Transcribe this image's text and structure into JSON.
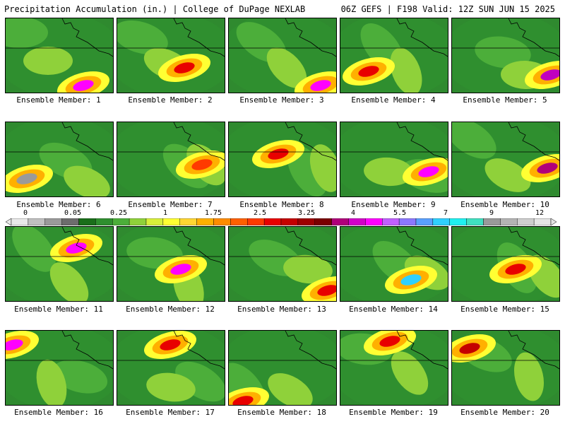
{
  "header": {
    "left_title": "Precipitation Accumulation (in.) | College of DuPage NEXLAB",
    "right_title": "06Z GEFS | F198 Valid: 12Z SUN JUN 15 2025"
  },
  "colorbar": {
    "labels": [
      "0",
      "0.05",
      "0.25",
      "1",
      "1.75",
      "2.5",
      "3.25",
      "4",
      "5.5",
      "7",
      "9",
      "12"
    ],
    "colors": [
      "#e8e8e8",
      "#c0c0c0",
      "#9a9a9a",
      "#6d6d6d",
      "#1a6e1a",
      "#2f8f2f",
      "#4cae3a",
      "#8fd13a",
      "#d8ef3a",
      "#ffff33",
      "#ffd633",
      "#ffb000",
      "#ff8c00",
      "#ff6000",
      "#ff3a00",
      "#e80000",
      "#c40000",
      "#9e0000",
      "#7a0000",
      "#b0007a",
      "#d200c8",
      "#ff00ff",
      "#c060ff",
      "#8c78ff",
      "#5aa0ff",
      "#30d0ff",
      "#20f0f0",
      "#40e0c0",
      "#9a9a9a",
      "#b4b4b4",
      "#cecece",
      "#e4e4e4"
    ]
  },
  "members": [
    {
      "label": "Ensemble Member: 1"
    },
    {
      "label": "Ensemble Member: 2"
    },
    {
      "label": "Ensemble Member: 3"
    },
    {
      "label": "Ensemble Member: 4"
    },
    {
      "label": "Ensemble Member: 5"
    },
    {
      "label": "Ensemble Member: 6"
    },
    {
      "label": "Ensemble Member: 7"
    },
    {
      "label": "Ensemble Member: 8"
    },
    {
      "label": "Ensemble Member: 9"
    },
    {
      "label": "Ensemble Member: 10"
    },
    {
      "label": "Ensemble Member: 11"
    },
    {
      "label": "Ensemble Member: 12"
    },
    {
      "label": "Ensemble Member: 13"
    },
    {
      "label": "Ensemble Member: 14"
    },
    {
      "label": "Ensemble Member: 15"
    },
    {
      "label": "Ensemble Member: 16"
    },
    {
      "label": "Ensemble Member: 17"
    },
    {
      "label": "Ensemble Member: 18"
    },
    {
      "label": "Ensemble Member: 19"
    },
    {
      "label": "Ensemble Member: 20"
    }
  ]
}
